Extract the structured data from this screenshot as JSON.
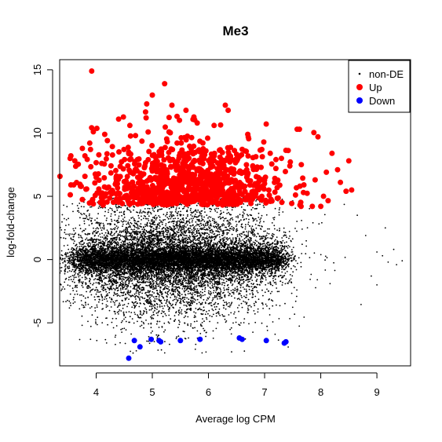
{
  "chart_data": {
    "type": "scatter",
    "title": "Me3",
    "xlabel": "Average log CPM",
    "ylabel": "log-fold-change",
    "xlim": [
      3.35,
      9.6
    ],
    "ylim": [
      -8.4,
      15.8
    ],
    "x_ticks": [
      "4",
      "5",
      "6",
      "7",
      "8",
      "9"
    ],
    "y_ticks": [
      "-5",
      "0",
      "5",
      "10",
      "15"
    ],
    "legend": {
      "placement": "top-right",
      "entries": [
        {
          "label": "non-DE",
          "color": "#000000"
        },
        {
          "label": "Up",
          "color": "#ff0000"
        },
        {
          "label": "Down",
          "color": "#0000ff"
        }
      ]
    },
    "series": [
      {
        "name": "non-DE",
        "color": "#000000",
        "note": "dense cloud of ~15000 points centered near 0, x 3.5-9.4, y -7.6 to 5",
        "cloud": {
          "x_center": 5.3,
          "x_spread": 0.9,
          "y_center": 0,
          "count_core": 9000,
          "count_wide": 6000
        },
        "points": [
          [
            3.5,
            2.0
          ],
          [
            3.55,
            5.2
          ],
          [
            3.6,
            -3.0
          ],
          [
            3.75,
            -5.2
          ],
          [
            3.9,
            -6.3
          ],
          [
            8.65,
            3.5
          ],
          [
            8.8,
            1.9
          ],
          [
            9.0,
            0.6
          ],
          [
            9.1,
            0.3
          ],
          [
            9.15,
            2.5
          ],
          [
            9.2,
            -0.2
          ],
          [
            9.3,
            0.8
          ],
          [
            9.35,
            -0.4
          ],
          [
            9.0,
            -2.0
          ],
          [
            8.9,
            -1.3
          ],
          [
            9.45,
            -0.1
          ]
        ]
      },
      {
        "name": "Up",
        "color": "#ff0000",
        "note": "upregulated genes, y above ~4.2",
        "cloud": {
          "x_center": 5.6,
          "x_spread": 0.75,
          "y_min": 4.2,
          "count": 1000
        },
        "points": [
          [
            3.92,
            14.9
          ],
          [
            5.22,
            13.9
          ],
          [
            5.0,
            13.0
          ],
          [
            5.35,
            12.2
          ],
          [
            6.3,
            12.2
          ],
          [
            6.35,
            11.8
          ],
          [
            3.95,
            10.1
          ],
          [
            4.4,
            11.1
          ],
          [
            4.9,
            12.3
          ],
          [
            5.6,
            11.8
          ],
          [
            3.55,
            8.2
          ],
          [
            3.62,
            7.8
          ],
          [
            3.55,
            5.9
          ],
          [
            3.6,
            5.9
          ],
          [
            3.8,
            8.2
          ],
          [
            3.9,
            8.7
          ],
          [
            3.72,
            5.8
          ],
          [
            7.58,
            10.3
          ],
          [
            7.62,
            10.3
          ],
          [
            7.95,
            9.7
          ],
          [
            8.2,
            8.4
          ],
          [
            8.3,
            7.1
          ],
          [
            8.5,
            7.8
          ],
          [
            8.55,
            5.5
          ],
          [
            8.45,
            5.4
          ],
          [
            8.35,
            6.1
          ],
          [
            8.1,
            6.9
          ],
          [
            7.9,
            6.3
          ],
          [
            8.05,
            5.0
          ],
          [
            7.65,
            4.2
          ],
          [
            7.85,
            4.2
          ],
          [
            8.0,
            4.2
          ],
          [
            7.3,
            8.0
          ],
          [
            7.45,
            7.4
          ],
          [
            6.7,
            9.9
          ],
          [
            6.95,
            8.7
          ],
          [
            7.1,
            8.4
          ],
          [
            7.2,
            7.2
          ],
          [
            7.0,
            6.0
          ],
          [
            6.8,
            5.4
          ],
          [
            7.55,
            5.1
          ],
          [
            7.7,
            5.9
          ],
          [
            6.1,
            10.6
          ],
          [
            5.8,
            10.8
          ],
          [
            4.2,
            9.4
          ],
          [
            4.1,
            7.6
          ],
          [
            4.0,
            6.5
          ],
          [
            4.25,
            5.3
          ],
          [
            4.6,
            10.6
          ],
          [
            4.7,
            9.8
          ]
        ]
      },
      {
        "name": "Down",
        "color": "#0000ff",
        "points": [
          [
            4.58,
            -7.8
          ],
          [
            4.68,
            -6.4
          ],
          [
            4.78,
            -6.9
          ],
          [
            4.98,
            -6.3
          ],
          [
            5.12,
            -6.4
          ],
          [
            5.15,
            -6.5
          ],
          [
            5.5,
            -6.4
          ],
          [
            5.85,
            -6.3
          ],
          [
            6.55,
            -6.2
          ],
          [
            6.6,
            -6.3
          ],
          [
            7.03,
            -6.4
          ],
          [
            7.35,
            -6.6
          ],
          [
            7.38,
            -6.5
          ]
        ]
      }
    ]
  }
}
